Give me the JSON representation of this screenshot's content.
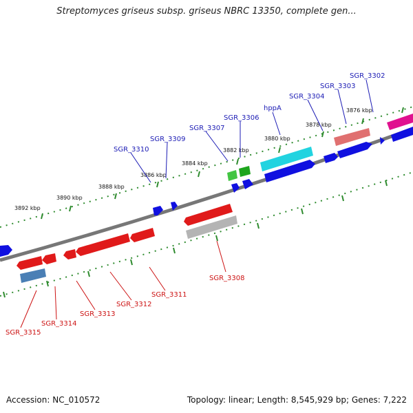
{
  "title": "Streptomyces griseus subsp. griseus NBRC 13350, complete gen...",
  "footer": {
    "accession": "Accession: NC_010572",
    "stats": "Topology: linear; Length: 8,545,929 bp; Genes: 7,222"
  },
  "colors": {
    "backbone": "#7a7a7a",
    "tick": "#2e8b2e",
    "label_forward": "#1a1ab4",
    "label_reverse": "#cc1111"
  },
  "tick_labels": [
    "3876 kbp",
    "3878 kbp",
    "3880 kbp",
    "3882 kbp",
    "3884 kbp",
    "3886 kbp",
    "3888 kbp",
    "3890 kbp",
    "3892 kbp"
  ],
  "genes_forward": [
    "SGR_3302",
    "SGR_3303",
    "SGR_3304",
    "hppA",
    "SGR_3306",
    "SGR_3307",
    "SGR_3309",
    "SGR_3310"
  ],
  "genes_reverse": [
    "SGR_3308",
    "SGR_3311",
    "SGR_3312",
    "SGR_3313",
    "SGR_3314",
    "SGR_3315"
  ]
}
